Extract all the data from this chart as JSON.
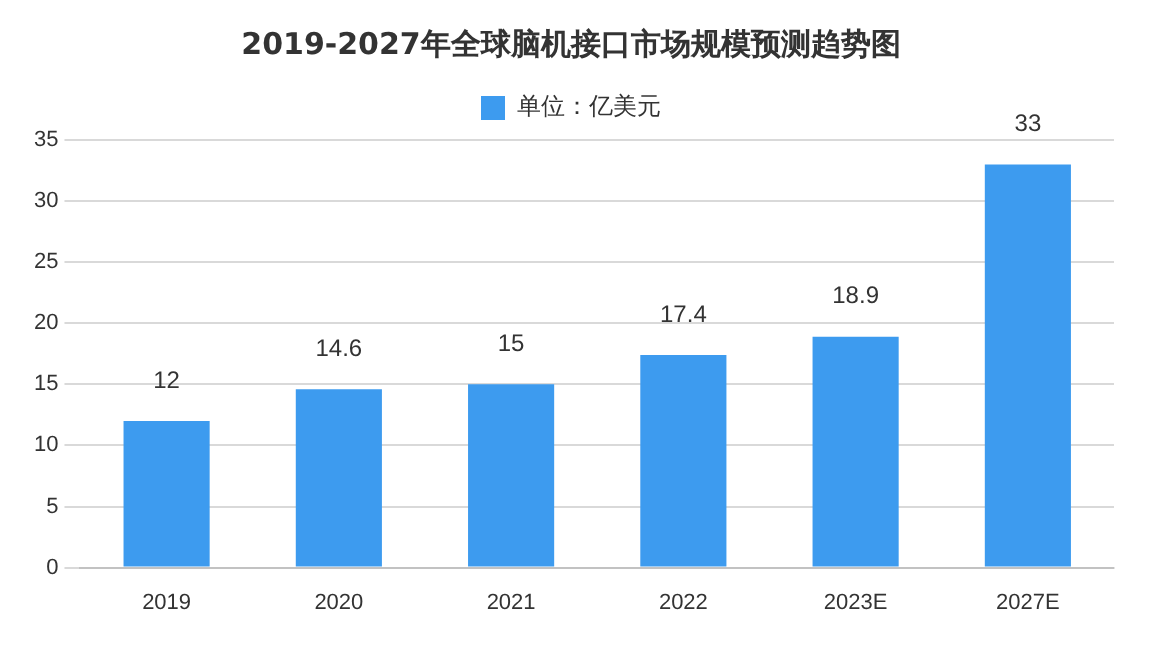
{
  "chart_data": {
    "type": "bar",
    "title": "2019-2027年全球脑机接口市场规模预测趋势图",
    "categories": [
      "2019",
      "2020",
      "2021",
      "2022",
      "2023E",
      "2027E"
    ],
    "series": [
      {
        "name": "单位：亿美元",
        "color": "#3d9bef",
        "values": [
          12,
          14.6,
          15,
          17.4,
          18.9,
          33
        ]
      }
    ],
    "ylim": [
      0,
      35
    ],
    "yticks": [
      0,
      5,
      10,
      15,
      20,
      25,
      30,
      35
    ],
    "grid": "y",
    "legend": "top",
    "data_labels": true
  }
}
